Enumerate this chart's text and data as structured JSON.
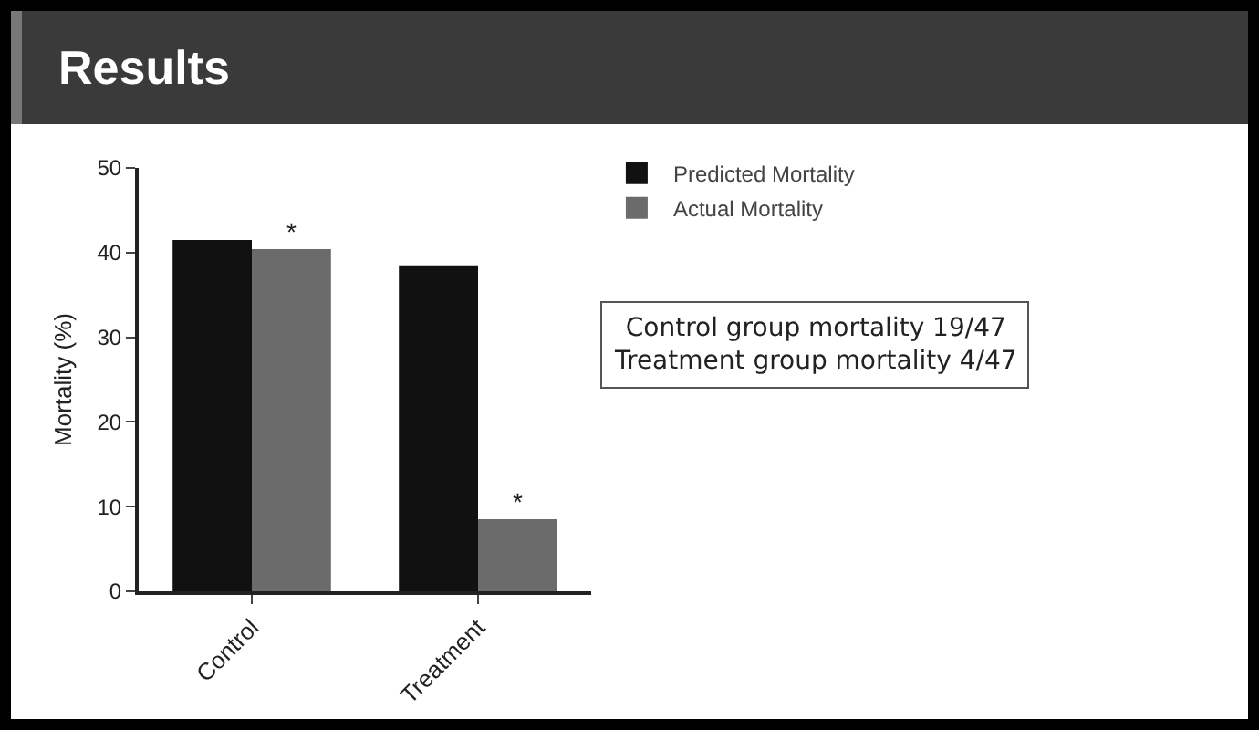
{
  "chart_data": {
    "type": "bar",
    "title": "Results",
    "ylabel": "Mortality (%)",
    "categories": [
      "Control",
      "Treatment"
    ],
    "series": [
      {
        "name": "Predicted Mortality",
        "color": "#111111",
        "values": [
          41.5,
          38.5
        ]
      },
      {
        "name": "Actual Mortality",
        "color": "#6b6b6b",
        "values": [
          40.4,
          8.5
        ]
      }
    ],
    "ylim": [
      0,
      50
    ],
    "yticks": [
      0,
      10,
      20,
      30,
      40,
      50
    ],
    "grid": false,
    "legend": "top right",
    "annotations": [
      {
        "text": "*",
        "x": "Control",
        "y": 40.4
      },
      {
        "text": "*",
        "x": "Treatment",
        "y": 8.5
      },
      "Control group mortality 19/47\nTreatment group mortality 4/47"
    ]
  }
}
